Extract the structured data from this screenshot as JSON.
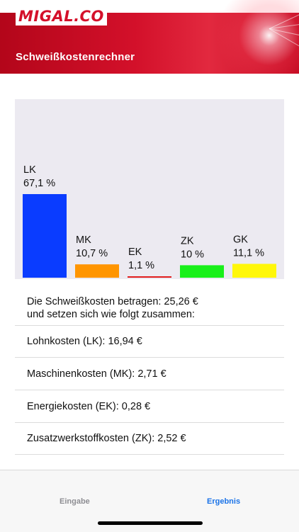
{
  "header": {
    "logo_text": "MIGAL.CO",
    "title": "Schweißkostenrechner",
    "brand_color": "#d4102a"
  },
  "chart_data": {
    "type": "bar",
    "categories": [
      "LK",
      "MK",
      "EK",
      "ZK",
      "GK"
    ],
    "values": [
      67.1,
      10.7,
      1.1,
      10,
      11.1
    ],
    "value_labels": [
      "67,1 %",
      "10,7 %",
      "1,1 %",
      "10 %",
      "11,1 %"
    ],
    "colors": [
      "#0a3cff",
      "#ff9500",
      "#e11d1d",
      "#19f01a",
      "#fff70a"
    ],
    "ylim": [
      0,
      100
    ],
    "grid": false
  },
  "summary": {
    "line1": "Die Schweißkosten betragen: 25,26 €",
    "line2": "und setzen sich wie folgt zusammen:"
  },
  "costs": [
    "Lohnkosten (LK): 16,94 €",
    "Maschinenkosten (MK): 2,71 €",
    "Energiekosten (EK): 0,28 €",
    "Zusatzwerkstoffkosten (ZK): 2,52 €"
  ],
  "tabs": {
    "eingabe": "Eingabe",
    "ergebnis": "Ergebnis"
  }
}
